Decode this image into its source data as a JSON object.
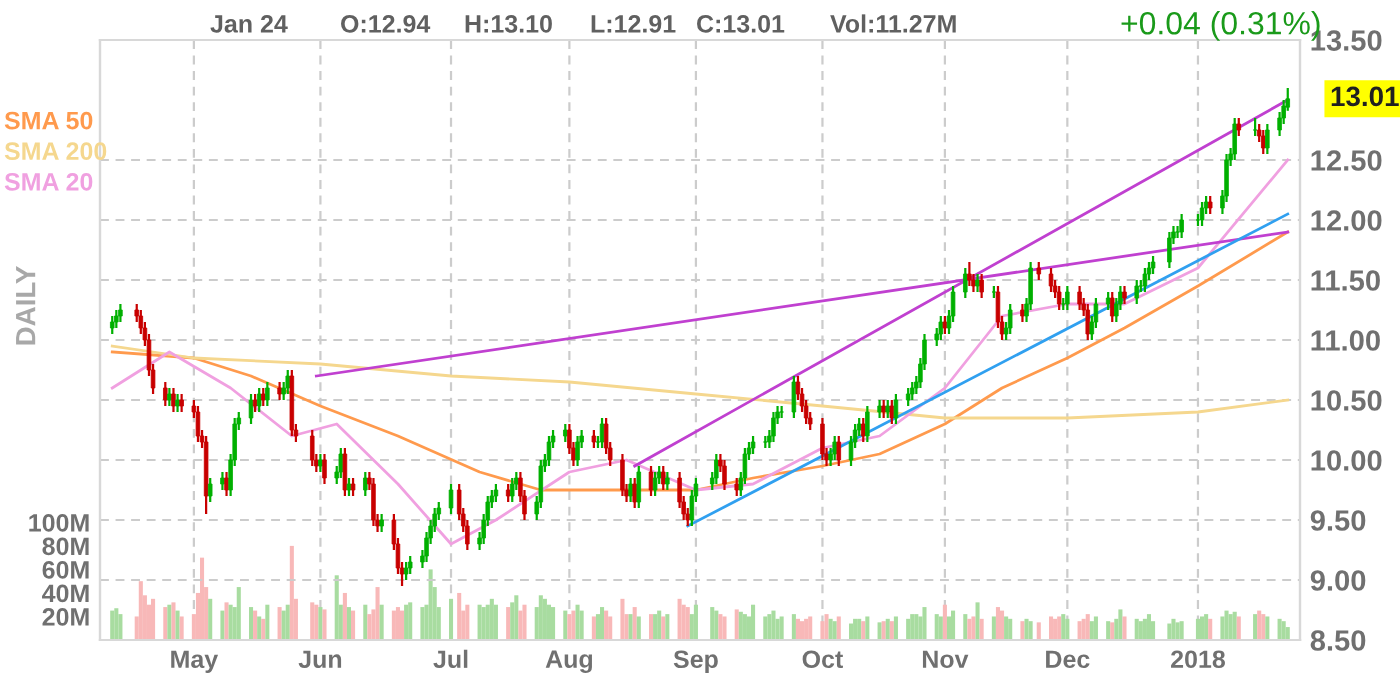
{
  "chart_data": {
    "type": "candlestick",
    "x": [
      "2017-04-11",
      "2017-04-12",
      "2017-04-13",
      "2017-04-17",
      "2017-04-18",
      "2017-04-19",
      "2017-04-20",
      "2017-04-21",
      "2017-04-24",
      "2017-04-25",
      "2017-04-26",
      "2017-04-27",
      "2017-04-28",
      "2017-05-01",
      "2017-05-02",
      "2017-05-03",
      "2017-05-04",
      "2017-05-05",
      "2017-05-08",
      "2017-05-09",
      "2017-05-10",
      "2017-05-11",
      "2017-05-12",
      "2017-05-15",
      "2017-05-16",
      "2017-05-17",
      "2017-05-18",
      "2017-05-19",
      "2017-05-22",
      "2017-05-23",
      "2017-05-24",
      "2017-05-25",
      "2017-05-26",
      "2017-05-30",
      "2017-05-31",
      "2017-06-01",
      "2017-06-02",
      "2017-06-05",
      "2017-06-06",
      "2017-06-07",
      "2017-06-08",
      "2017-06-09",
      "2017-06-12",
      "2017-06-13",
      "2017-06-14",
      "2017-06-15",
      "2017-06-16",
      "2017-06-19",
      "2017-06-20",
      "2017-06-21",
      "2017-06-22",
      "2017-06-23",
      "2017-06-26",
      "2017-06-27",
      "2017-06-28",
      "2017-06-29",
      "2017-06-30",
      "2017-07-03",
      "2017-07-05",
      "2017-07-06",
      "2017-07-07",
      "2017-07-10",
      "2017-07-11",
      "2017-07-12",
      "2017-07-13",
      "2017-07-14",
      "2017-07-17",
      "2017-07-18",
      "2017-07-19",
      "2017-07-20",
      "2017-07-21",
      "2017-07-24",
      "2017-07-25",
      "2017-07-26",
      "2017-07-27",
      "2017-07-28",
      "2017-07-31",
      "2017-08-01",
      "2017-08-02",
      "2017-08-03",
      "2017-08-04",
      "2017-08-07",
      "2017-08-08",
      "2017-08-09",
      "2017-08-10",
      "2017-08-11",
      "2017-08-14",
      "2017-08-15",
      "2017-08-16",
      "2017-08-17",
      "2017-08-18",
      "2017-08-21",
      "2017-08-22",
      "2017-08-23",
      "2017-08-24",
      "2017-08-25",
      "2017-08-28",
      "2017-08-29",
      "2017-08-30",
      "2017-08-31",
      "2017-09-01",
      "2017-09-05",
      "2017-09-06",
      "2017-09-07",
      "2017-09-08",
      "2017-09-11",
      "2017-09-12",
      "2017-09-13",
      "2017-09-14",
      "2017-09-15",
      "2017-09-18",
      "2017-09-19",
      "2017-09-20",
      "2017-09-21",
      "2017-09-22",
      "2017-09-25",
      "2017-09-26",
      "2017-09-27",
      "2017-09-28",
      "2017-09-29",
      "2017-10-02",
      "2017-10-03",
      "2017-10-04",
      "2017-10-05",
      "2017-10-06",
      "2017-10-09",
      "2017-10-10",
      "2017-10-11",
      "2017-10-12",
      "2017-10-13",
      "2017-10-16",
      "2017-10-17",
      "2017-10-18",
      "2017-10-19",
      "2017-10-20",
      "2017-10-23",
      "2017-10-24",
      "2017-10-25",
      "2017-10-26",
      "2017-10-27",
      "2017-10-30",
      "2017-10-31",
      "2017-11-01",
      "2017-11-02",
      "2017-11-03",
      "2017-11-06",
      "2017-11-07",
      "2017-11-08",
      "2017-11-09",
      "2017-11-10",
      "2017-11-13",
      "2017-11-14",
      "2017-11-15",
      "2017-11-16",
      "2017-11-17",
      "2017-11-20",
      "2017-11-21",
      "2017-11-22",
      "2017-11-24",
      "2017-11-27",
      "2017-11-28",
      "2017-11-29",
      "2017-11-30",
      "2017-12-01",
      "2017-12-04",
      "2017-12-05",
      "2017-12-06",
      "2017-12-07",
      "2017-12-08",
      "2017-12-11",
      "2017-12-12",
      "2017-12-13",
      "2017-12-14",
      "2017-12-15",
      "2017-12-18",
      "2017-12-19",
      "2017-12-20",
      "2017-12-21",
      "2017-12-22",
      "2017-12-26",
      "2017-12-27",
      "2017-12-28",
      "2017-12-29",
      "2018-01-02",
      "2018-01-03",
      "2018-01-04",
      "2018-01-05",
      "2018-01-08",
      "2018-01-09",
      "2018-01-10",
      "2018-01-11",
      "2018-01-12",
      "2018-01-16",
      "2018-01-17",
      "2018-01-18",
      "2018-01-19",
      "2018-01-22",
      "2018-01-23",
      "2018-01-24"
    ],
    "ohlc": [
      [
        11.1,
        11.2,
        11.05,
        11.15
      ],
      [
        11.15,
        11.25,
        11.1,
        11.2
      ],
      [
        11.2,
        11.3,
        11.15,
        11.25
      ],
      [
        11.25,
        11.3,
        11.15,
        11.2
      ],
      [
        11.2,
        11.25,
        11.05,
        11.1
      ],
      [
        11.1,
        11.15,
        10.95,
        11.0
      ],
      [
        11.0,
        11.05,
        10.7,
        10.75
      ],
      [
        10.75,
        10.8,
        10.55,
        10.6
      ],
      [
        10.6,
        10.65,
        10.45,
        10.5
      ],
      [
        10.5,
        10.6,
        10.45,
        10.55
      ],
      [
        10.55,
        10.6,
        10.4,
        10.45
      ],
      [
        10.45,
        10.55,
        10.4,
        10.5
      ],
      [
        10.5,
        10.55,
        10.4,
        10.45
      ],
      [
        10.45,
        10.5,
        10.35,
        10.4
      ],
      [
        10.4,
        10.45,
        10.15,
        10.2
      ],
      [
        10.2,
        10.25,
        10.1,
        10.15
      ],
      [
        10.15,
        10.2,
        9.55,
        9.7
      ],
      [
        9.7,
        9.85,
        9.65,
        9.8
      ],
      [
        9.8,
        9.9,
        9.75,
        9.85
      ],
      [
        9.85,
        9.9,
        9.7,
        9.75
      ],
      [
        9.75,
        10.05,
        9.7,
        10.0
      ],
      [
        10.0,
        10.35,
        9.95,
        10.3
      ],
      [
        10.3,
        10.4,
        10.25,
        10.35
      ],
      [
        10.35,
        10.55,
        10.3,
        10.5
      ],
      [
        10.5,
        10.55,
        10.4,
        10.45
      ],
      [
        10.45,
        10.6,
        10.4,
        10.55
      ],
      [
        10.55,
        10.6,
        10.45,
        10.5
      ],
      [
        10.5,
        10.65,
        10.45,
        10.6
      ],
      [
        10.6,
        10.65,
        10.5,
        10.55
      ],
      [
        10.55,
        10.65,
        10.5,
        10.6
      ],
      [
        10.6,
        10.75,
        10.55,
        10.7
      ],
      [
        10.7,
        10.75,
        10.2,
        10.25
      ],
      [
        10.25,
        10.3,
        10.15,
        10.2
      ],
      [
        10.2,
        10.25,
        9.95,
        10.0
      ],
      [
        10.0,
        10.05,
        9.9,
        9.95
      ],
      [
        9.95,
        10.05,
        9.9,
        10.0
      ],
      [
        10.0,
        10.05,
        9.8,
        9.85
      ],
      [
        9.85,
        9.95,
        9.8,
        9.9
      ],
      [
        9.9,
        10.1,
        9.85,
        10.05
      ],
      [
        10.05,
        10.1,
        9.7,
        9.75
      ],
      [
        9.75,
        9.85,
        9.7,
        9.8
      ],
      [
        9.8,
        9.85,
        9.7,
        9.75
      ],
      [
        9.75,
        9.9,
        9.7,
        9.85
      ],
      [
        9.85,
        9.9,
        9.75,
        9.8
      ],
      [
        9.8,
        9.85,
        9.45,
        9.5
      ],
      [
        9.5,
        9.55,
        9.4,
        9.45
      ],
      [
        9.45,
        9.55,
        9.4,
        9.5
      ],
      [
        9.5,
        9.55,
        9.25,
        9.3
      ],
      [
        9.3,
        9.35,
        9.05,
        9.1
      ],
      [
        9.1,
        9.15,
        8.95,
        9.05
      ],
      [
        9.05,
        9.15,
        9.0,
        9.1
      ],
      [
        9.1,
        9.2,
        9.05,
        9.15
      ],
      [
        9.15,
        9.25,
        9.1,
        9.2
      ],
      [
        9.2,
        9.4,
        9.15,
        9.35
      ],
      [
        9.35,
        9.5,
        9.3,
        9.45
      ],
      [
        9.45,
        9.6,
        9.4,
        9.55
      ],
      [
        9.55,
        9.65,
        9.5,
        9.6
      ],
      [
        9.6,
        9.8,
        9.55,
        9.75
      ],
      [
        9.75,
        9.8,
        9.5,
        9.55
      ],
      [
        9.55,
        9.6,
        9.4,
        9.45
      ],
      [
        9.45,
        9.5,
        9.25,
        9.3
      ],
      [
        9.3,
        9.4,
        9.25,
        9.35
      ],
      [
        9.35,
        9.55,
        9.3,
        9.5
      ],
      [
        9.5,
        9.7,
        9.45,
        9.65
      ],
      [
        9.65,
        9.75,
        9.6,
        9.7
      ],
      [
        9.7,
        9.8,
        9.65,
        9.75
      ],
      [
        9.75,
        9.8,
        9.65,
        9.7
      ],
      [
        9.7,
        9.85,
        9.65,
        9.8
      ],
      [
        9.8,
        9.9,
        9.75,
        9.85
      ],
      [
        9.85,
        9.9,
        9.65,
        9.7
      ],
      [
        9.7,
        9.75,
        9.5,
        9.55
      ],
      [
        9.55,
        9.7,
        9.5,
        9.65
      ],
      [
        9.65,
        10.0,
        9.6,
        9.95
      ],
      [
        9.95,
        10.05,
        9.9,
        10.0
      ],
      [
        10.0,
        10.2,
        9.95,
        10.15
      ],
      [
        10.15,
        10.25,
        10.1,
        10.2
      ],
      [
        10.2,
        10.3,
        10.15,
        10.25
      ],
      [
        10.25,
        10.3,
        10.05,
        10.1
      ],
      [
        10.1,
        10.15,
        9.95,
        10.0
      ],
      [
        10.0,
        10.2,
        9.95,
        10.15
      ],
      [
        10.15,
        10.25,
        10.1,
        10.2
      ],
      [
        10.2,
        10.25,
        10.1,
        10.15
      ],
      [
        10.15,
        10.2,
        10.1,
        10.15
      ],
      [
        10.15,
        10.35,
        10.1,
        10.3
      ],
      [
        10.3,
        10.35,
        10.05,
        10.1
      ],
      [
        10.1,
        10.15,
        9.95,
        10.0
      ],
      [
        10.0,
        10.05,
        9.7,
        9.75
      ],
      [
        9.75,
        9.8,
        9.65,
        9.7
      ],
      [
        9.7,
        9.85,
        9.65,
        9.8
      ],
      [
        9.8,
        9.85,
        9.6,
        9.65
      ],
      [
        9.65,
        9.95,
        9.6,
        9.9
      ],
      [
        9.9,
        9.95,
        9.7,
        9.75
      ],
      [
        9.75,
        9.9,
        9.7,
        9.85
      ],
      [
        9.85,
        9.95,
        9.8,
        9.9
      ],
      [
        9.9,
        9.95,
        9.75,
        9.8
      ],
      [
        9.8,
        9.9,
        9.75,
        9.85
      ],
      [
        9.85,
        9.9,
        9.6,
        9.65
      ],
      [
        9.65,
        9.7,
        9.5,
        9.55
      ],
      [
        9.55,
        9.6,
        9.45,
        9.5
      ],
      [
        9.5,
        9.75,
        9.45,
        9.7
      ],
      [
        9.7,
        9.85,
        9.65,
        9.8
      ],
      [
        9.8,
        9.9,
        9.75,
        9.85
      ],
      [
        9.85,
        10.05,
        9.8,
        10.0
      ],
      [
        10.0,
        10.05,
        9.9,
        9.95
      ],
      [
        9.95,
        10.0,
        9.75,
        9.8
      ],
      [
        9.8,
        9.85,
        9.7,
        9.75
      ],
      [
        9.75,
        9.9,
        9.7,
        9.85
      ],
      [
        9.85,
        10.1,
        9.8,
        10.05
      ],
      [
        10.05,
        10.15,
        10.0,
        10.1
      ],
      [
        10.1,
        10.2,
        10.05,
        10.15
      ],
      [
        10.15,
        10.2,
        10.1,
        10.15
      ],
      [
        10.15,
        10.25,
        10.1,
        10.2
      ],
      [
        10.2,
        10.4,
        10.15,
        10.35
      ],
      [
        10.35,
        10.45,
        10.3,
        10.4
      ],
      [
        10.4,
        10.45,
        10.35,
        10.4
      ],
      [
        10.4,
        10.7,
        10.35,
        10.65
      ],
      [
        10.65,
        10.7,
        10.5,
        10.55
      ],
      [
        10.55,
        10.6,
        10.4,
        10.45
      ],
      [
        10.45,
        10.5,
        10.3,
        10.35
      ],
      [
        10.35,
        10.4,
        10.25,
        10.3
      ],
      [
        10.3,
        10.35,
        10.0,
        10.05
      ],
      [
        10.05,
        10.1,
        9.95,
        10.0
      ],
      [
        10.0,
        10.1,
        9.95,
        10.05
      ],
      [
        10.05,
        10.2,
        10.0,
        10.15
      ],
      [
        10.15,
        10.2,
        9.95,
        10.0
      ],
      [
        10.0,
        10.2,
        9.95,
        10.15
      ],
      [
        10.15,
        10.3,
        10.1,
        10.25
      ],
      [
        10.25,
        10.35,
        10.2,
        10.3
      ],
      [
        10.3,
        10.35,
        10.15,
        10.2
      ],
      [
        10.2,
        10.45,
        10.15,
        10.4
      ],
      [
        10.4,
        10.5,
        10.35,
        10.45
      ],
      [
        10.45,
        10.5,
        10.35,
        10.4
      ],
      [
        10.4,
        10.5,
        10.35,
        10.45
      ],
      [
        10.45,
        10.5,
        10.3,
        10.35
      ],
      [
        10.35,
        10.55,
        10.3,
        10.5
      ],
      [
        10.5,
        10.6,
        10.45,
        10.55
      ],
      [
        10.55,
        10.65,
        10.5,
        10.6
      ],
      [
        10.6,
        10.7,
        10.55,
        10.65
      ],
      [
        10.65,
        10.85,
        10.6,
        10.8
      ],
      [
        10.8,
        11.05,
        10.75,
        11.0
      ],
      [
        11.0,
        11.1,
        10.95,
        11.05
      ],
      [
        11.05,
        11.2,
        11.0,
        11.15
      ],
      [
        11.15,
        11.2,
        11.05,
        11.1
      ],
      [
        11.1,
        11.25,
        11.05,
        11.2
      ],
      [
        11.2,
        11.45,
        11.15,
        11.4
      ],
      [
        11.4,
        11.6,
        11.35,
        11.55
      ],
      [
        11.55,
        11.65,
        11.45,
        11.5
      ],
      [
        11.5,
        11.55,
        11.4,
        11.45
      ],
      [
        11.45,
        11.55,
        11.4,
        11.5
      ],
      [
        11.5,
        11.55,
        11.35,
        11.4
      ],
      [
        11.4,
        11.45,
        11.35,
        11.4
      ],
      [
        11.4,
        11.45,
        11.1,
        11.15
      ],
      [
        11.15,
        11.2,
        11.0,
        11.05
      ],
      [
        11.05,
        11.15,
        11.0,
        11.1
      ],
      [
        11.1,
        11.3,
        11.05,
        11.25
      ],
      [
        11.25,
        11.3,
        11.15,
        11.2
      ],
      [
        11.2,
        11.35,
        11.15,
        11.3
      ],
      [
        11.3,
        11.65,
        11.25,
        11.6
      ],
      [
        11.6,
        11.65,
        11.5,
        11.55
      ],
      [
        11.55,
        11.6,
        11.4,
        11.45
      ],
      [
        11.45,
        11.5,
        11.35,
        11.4
      ],
      [
        11.4,
        11.45,
        11.25,
        11.3
      ],
      [
        11.3,
        11.35,
        11.25,
        11.3
      ],
      [
        11.3,
        11.45,
        11.25,
        11.4
      ],
      [
        11.4,
        11.45,
        11.25,
        11.3
      ],
      [
        11.3,
        11.35,
        11.2,
        11.25
      ],
      [
        11.25,
        11.3,
        11.0,
        11.05
      ],
      [
        11.05,
        11.2,
        11.0,
        11.15
      ],
      [
        11.15,
        11.35,
        11.1,
        11.3
      ],
      [
        11.3,
        11.4,
        11.25,
        11.35
      ],
      [
        11.35,
        11.4,
        11.15,
        11.2
      ],
      [
        11.2,
        11.35,
        11.15,
        11.3
      ],
      [
        11.3,
        11.45,
        11.25,
        11.4
      ],
      [
        11.4,
        11.45,
        11.3,
        11.35
      ],
      [
        11.35,
        11.5,
        11.3,
        11.45
      ],
      [
        11.45,
        11.5,
        11.4,
        11.45
      ],
      [
        11.45,
        11.6,
        11.4,
        11.55
      ],
      [
        11.55,
        11.65,
        11.5,
        11.6
      ],
      [
        11.6,
        11.7,
        11.55,
        11.65
      ],
      [
        11.65,
        11.9,
        11.6,
        11.85
      ],
      [
        11.85,
        11.95,
        11.8,
        11.9
      ],
      [
        11.9,
        11.95,
        11.85,
        11.9
      ],
      [
        11.9,
        12.05,
        11.85,
        12.0
      ],
      [
        12.0,
        12.05,
        11.95,
        12.0
      ],
      [
        12.0,
        12.15,
        11.95,
        12.1
      ],
      [
        12.1,
        12.2,
        12.05,
        12.15
      ],
      [
        12.15,
        12.2,
        12.05,
        12.1
      ],
      [
        12.1,
        12.25,
        12.05,
        12.2
      ],
      [
        12.2,
        12.55,
        12.15,
        12.5
      ],
      [
        12.5,
        12.6,
        12.45,
        12.55
      ],
      [
        12.55,
        12.85,
        12.5,
        12.8
      ],
      [
        12.8,
        12.85,
        12.7,
        12.75
      ],
      [
        12.75,
        12.85,
        12.7,
        12.75
      ],
      [
        12.75,
        12.8,
        12.65,
        12.7
      ],
      [
        12.7,
        12.75,
        12.55,
        12.6
      ],
      [
        12.6,
        12.8,
        12.55,
        12.75
      ],
      [
        12.75,
        12.9,
        12.7,
        12.85
      ],
      [
        12.85,
        13.0,
        12.8,
        12.95
      ],
      [
        12.94,
        13.1,
        12.91,
        13.01
      ]
    ],
    "colors": [
      "#00b000",
      "#00b000",
      "#00b000",
      "#c80000",
      "#c80000",
      "#c80000",
      "#c80000",
      "#c80000",
      "#c80000",
      "#00b000",
      "#c80000",
      "#00b000",
      "#c80000",
      "#c80000",
      "#c80000",
      "#c80000",
      "#c80000",
      "#00b000",
      "#00b000",
      "#c80000",
      "#00b000",
      "#00b000",
      "#00b000",
      "#00b000",
      "#c80000",
      "#00b000",
      "#c80000",
      "#00b000",
      "#c80000",
      "#00b000",
      "#00b000",
      "#c80000",
      "#c80000",
      "#c80000",
      "#c80000",
      "#00b000",
      "#c80000",
      "#00b000",
      "#00b000",
      "#c80000",
      "#00b000",
      "#c80000",
      "#00b000",
      "#c80000",
      "#c80000",
      "#c80000",
      "#00b000",
      "#c80000",
      "#c80000",
      "#c80000",
      "#00b000",
      "#00b000",
      "#00b000",
      "#00b000",
      "#00b000",
      "#00b000",
      "#00b000",
      "#00b000",
      "#c80000",
      "#c80000",
      "#c80000",
      "#00b000",
      "#00b000",
      "#00b000",
      "#00b000",
      "#00b000",
      "#c80000",
      "#00b000",
      "#00b000",
      "#c80000",
      "#c80000",
      "#00b000",
      "#00b000",
      "#00b000",
      "#00b000",
      "#00b000",
      "#00b000",
      "#c80000",
      "#c80000",
      "#00b000",
      "#00b000",
      "#c80000",
      "#00b000",
      "#00b000",
      "#c80000",
      "#c80000",
      "#c80000",
      "#c80000",
      "#00b000",
      "#c80000",
      "#00b000",
      "#c80000",
      "#00b000",
      "#00b000",
      "#c80000",
      "#00b000",
      "#c80000",
      "#c80000",
      "#c80000",
      "#00b000",
      "#00b000",
      "#00b000",
      "#00b000",
      "#c80000",
      "#c80000",
      "#c80000",
      "#00b000",
      "#00b000",
      "#00b000",
      "#00b000",
      "#00b000",
      "#00b000",
      "#00b000",
      "#00b000",
      "#00b000",
      "#00b000",
      "#c80000",
      "#c80000",
      "#c80000",
      "#c80000",
      "#c80000",
      "#c80000",
      "#00b000",
      "#00b000",
      "#c80000",
      "#00b000",
      "#00b000",
      "#00b000",
      "#c80000",
      "#00b000",
      "#00b000",
      "#c80000",
      "#00b000",
      "#c80000",
      "#00b000",
      "#00b000",
      "#00b000",
      "#00b000",
      "#00b000",
      "#00b000",
      "#00b000",
      "#00b000",
      "#c80000",
      "#00b000",
      "#00b000",
      "#00b000",
      "#c80000",
      "#c80000",
      "#00b000",
      "#c80000",
      "#00b000",
      "#c80000",
      "#c80000",
      "#00b000",
      "#00b000",
      "#c80000",
      "#00b000",
      "#00b000",
      "#c80000",
      "#c80000",
      "#c80000",
      "#c80000",
      "#00b000",
      "#00b000",
      "#c80000",
      "#c80000",
      "#c80000",
      "#00b000",
      "#00b000",
      "#00b000",
      "#c80000",
      "#00b000",
      "#00b000",
      "#c80000",
      "#00b000",
      "#00b000",
      "#00b000",
      "#00b000",
      "#00b000",
      "#00b000",
      "#00b000",
      "#00b000",
      "#00b000",
      "#00b000",
      "#00b000",
      "#00b000",
      "#c80000",
      "#00b000",
      "#00b000",
      "#00b000",
      "#00b000",
      "#c80000",
      "#00b000",
      "#c80000",
      "#c80000",
      "#00b000",
      "#00b000",
      "#00b000",
      "#00b000"
    ],
    "series": [
      {
        "type": "bar",
        "axis": "y2",
        "colors": [
          "#a8dca0",
          "#a8dca0",
          "#a8dca0",
          "#f8b8b8",
          "#f8b8b8",
          "#f8b8b8",
          "#f8b8b8",
          "#f8b8b8",
          "#f8b8b8",
          "#a8dca0",
          "#f8b8b8",
          "#a8dca0",
          "#f8b8b8",
          "#f8b8b8",
          "#f8b8b8",
          "#f8b8b8",
          "#f8b8b8",
          "#a8dca0",
          "#a8dca0",
          "#f8b8b8",
          "#a8dca0",
          "#a8dca0",
          "#a8dca0",
          "#a8dca0",
          "#f8b8b8",
          "#a8dca0",
          "#f8b8b8",
          "#a8dca0",
          "#f8b8b8",
          "#a8dca0",
          "#a8dca0",
          "#f8b8b8",
          "#f8b8b8",
          "#f8b8b8",
          "#f8b8b8",
          "#a8dca0",
          "#f8b8b8",
          "#a8dca0",
          "#a8dca0",
          "#f8b8b8",
          "#a8dca0",
          "#f8b8b8",
          "#a8dca0",
          "#f8b8b8",
          "#f8b8b8",
          "#f8b8b8",
          "#a8dca0",
          "#f8b8b8",
          "#f8b8b8",
          "#f8b8b8",
          "#a8dca0",
          "#a8dca0",
          "#a8dca0",
          "#a8dca0",
          "#a8dca0",
          "#a8dca0",
          "#a8dca0",
          "#a8dca0",
          "#f8b8b8",
          "#f8b8b8",
          "#f8b8b8",
          "#a8dca0",
          "#a8dca0",
          "#a8dca0",
          "#a8dca0",
          "#a8dca0",
          "#f8b8b8",
          "#a8dca0",
          "#a8dca0",
          "#f8b8b8",
          "#f8b8b8",
          "#a8dca0",
          "#a8dca0",
          "#a8dca0",
          "#a8dca0",
          "#a8dca0",
          "#a8dca0",
          "#f8b8b8",
          "#f8b8b8",
          "#a8dca0",
          "#a8dca0",
          "#f8b8b8",
          "#a8dca0",
          "#a8dca0",
          "#f8b8b8",
          "#f8b8b8",
          "#f8b8b8",
          "#f8b8b8",
          "#a8dca0",
          "#f8b8b8",
          "#a8dca0",
          "#f8b8b8",
          "#a8dca0",
          "#a8dca0",
          "#f8b8b8",
          "#a8dca0",
          "#f8b8b8",
          "#f8b8b8",
          "#f8b8b8",
          "#a8dca0",
          "#a8dca0",
          "#a8dca0",
          "#a8dca0",
          "#f8b8b8",
          "#f8b8b8",
          "#f8b8b8",
          "#a8dca0",
          "#a8dca0",
          "#a8dca0",
          "#a8dca0",
          "#a8dca0",
          "#a8dca0",
          "#a8dca0",
          "#a8dca0",
          "#a8dca0",
          "#a8dca0",
          "#f8b8b8",
          "#f8b8b8",
          "#f8b8b8",
          "#f8b8b8",
          "#f8b8b8",
          "#f8b8b8",
          "#a8dca0",
          "#a8dca0",
          "#f8b8b8",
          "#a8dca0",
          "#a8dca0",
          "#a8dca0",
          "#f8b8b8",
          "#a8dca0",
          "#a8dca0",
          "#f8b8b8",
          "#a8dca0",
          "#f8b8b8",
          "#a8dca0",
          "#a8dca0",
          "#a8dca0",
          "#a8dca0",
          "#a8dca0",
          "#a8dca0",
          "#a8dca0",
          "#a8dca0",
          "#f8b8b8",
          "#a8dca0",
          "#a8dca0",
          "#a8dca0",
          "#f8b8b8",
          "#f8b8b8",
          "#a8dca0",
          "#f8b8b8",
          "#a8dca0",
          "#f8b8b8",
          "#f8b8b8",
          "#a8dca0",
          "#a8dca0",
          "#f8b8b8",
          "#a8dca0",
          "#a8dca0",
          "#f8b8b8",
          "#f8b8b8",
          "#f8b8b8",
          "#f8b8b8",
          "#a8dca0",
          "#a8dca0",
          "#f8b8b8",
          "#f8b8b8",
          "#f8b8b8",
          "#a8dca0",
          "#a8dca0",
          "#a8dca0",
          "#f8b8b8",
          "#a8dca0",
          "#a8dca0",
          "#f8b8b8",
          "#a8dca0",
          "#a8dca0",
          "#a8dca0",
          "#a8dca0",
          "#a8dca0",
          "#a8dca0",
          "#a8dca0",
          "#a8dca0",
          "#a8dca0",
          "#a8dca0",
          "#a8dca0",
          "#a8dca0",
          "#f8b8b8",
          "#a8dca0",
          "#a8dca0",
          "#a8dca0",
          "#a8dca0",
          "#f8b8b8",
          "#a8dca0",
          "#f8b8b8",
          "#f8b8b8",
          "#a8dca0",
          "#a8dca0",
          "#a8dca0",
          "#a8dca0"
        ],
        "values": [
          25,
          27,
          22,
          20,
          50,
          38,
          30,
          35,
          28,
          30,
          32,
          25,
          20,
          22,
          40,
          70,
          45,
          35,
          25,
          32,
          30,
          28,
          45,
          28,
          25,
          20,
          18,
          30,
          28,
          25,
          30,
          80,
          35,
          32,
          30,
          28,
          26,
          55,
          30,
          40,
          28,
          25,
          30,
          22,
          26,
          45,
          30,
          25,
          28,
          25,
          30,
          32,
          28,
          30,
          60,
          45,
          28,
          35,
          40,
          25,
          30,
          30,
          28,
          30,
          35,
          30,
          28,
          32,
          38,
          25,
          30,
          28,
          38,
          35,
          30,
          28,
          25,
          22,
          25,
          30,
          25,
          20,
          22,
          28,
          25,
          20,
          35,
          22,
          22,
          28,
          20,
          22,
          22,
          25,
          20,
          22,
          35,
          30,
          28,
          22,
          30,
          28,
          25,
          22,
          20,
          26,
          24,
          22,
          20,
          30,
          20,
          22,
          25,
          18,
          20,
          22,
          18,
          16,
          18,
          20,
          16,
          22,
          18,
          16,
          20,
          14,
          18,
          18,
          16,
          20,
          15,
          16,
          18,
          16,
          20,
          18,
          22,
          22,
          20,
          28,
          22,
          20,
          30,
          20,
          25,
          22,
          18,
          20,
          32,
          18,
          20,
          28,
          25,
          20,
          18,
          16,
          18,
          16,
          15,
          20,
          18,
          20,
          22,
          18,
          16,
          18,
          22,
          16,
          20,
          16,
          15,
          18,
          26,
          20,
          18,
          16,
          18,
          22,
          16,
          14,
          18,
          15,
          16,
          18,
          20,
          22,
          18,
          20,
          25,
          22,
          24,
          20,
          22,
          25,
          22,
          20,
          18,
          16,
          11
        ]
      },
      {
        "type": "line",
        "name": "SMA 50",
        "color": "#ff9a4d",
        "x": [
          "2017-04-11",
          "2017-05-01",
          "2017-05-15",
          "2017-06-01",
          "2017-06-20",
          "2017-07-10",
          "2017-07-25",
          "2017-08-15",
          "2017-09-01",
          "2017-09-15",
          "2017-10-02",
          "2017-10-16",
          "2017-11-01",
          "2017-11-15",
          "2017-12-01",
          "2017-12-15",
          "2018-01-02",
          "2018-01-24"
        ],
        "values": [
          10.9,
          10.85,
          10.7,
          10.45,
          10.2,
          9.9,
          9.75,
          9.75,
          9.75,
          9.85,
          9.95,
          10.05,
          10.3,
          10.6,
          10.85,
          11.1,
          11.45,
          11.9
        ]
      },
      {
        "type": "line",
        "name": "SMA 200",
        "color": "#f5d78e",
        "x": [
          "2017-04-11",
          "2017-05-01",
          "2017-06-01",
          "2017-07-03",
          "2017-08-01",
          "2017-09-01",
          "2017-10-02",
          "2017-11-01",
          "2017-12-01",
          "2018-01-02",
          "2018-01-24"
        ],
        "values": [
          10.95,
          10.85,
          10.8,
          10.7,
          10.65,
          10.55,
          10.45,
          10.35,
          10.35,
          10.4,
          10.5
        ]
      },
      {
        "type": "line",
        "name": "SMA 20",
        "color": "#f0a0e0",
        "x": [
          "2017-04-11",
          "2017-04-25",
          "2017-05-10",
          "2017-05-25",
          "2017-06-05",
          "2017-06-20",
          "2017-07-03",
          "2017-07-14",
          "2017-08-01",
          "2017-08-15",
          "2017-09-01",
          "2017-09-15",
          "2017-10-02",
          "2017-10-16",
          "2017-11-01",
          "2017-11-15",
          "2017-12-01",
          "2017-12-15",
          "2018-01-02",
          "2018-01-24"
        ],
        "values": [
          10.6,
          10.9,
          10.6,
          10.2,
          10.3,
          9.8,
          9.3,
          9.5,
          9.9,
          10.0,
          9.75,
          9.8,
          10.1,
          10.2,
          10.6,
          11.2,
          11.3,
          11.3,
          11.6,
          12.5
        ]
      },
      {
        "type": "line",
        "color": "#c040d0",
        "x": [
          "2017-05-31",
          "2018-01-24"
        ],
        "values": [
          10.7,
          11.9
        ]
      },
      {
        "type": "line",
        "color": "#c040d0",
        "x": [
          "2017-08-17",
          "2018-01-24"
        ],
        "values": [
          9.95,
          13.0
        ]
      },
      {
        "type": "line",
        "color": "#30a0f0",
        "x": [
          "2017-08-30",
          "2018-01-24"
        ],
        "values": [
          9.45,
          12.05
        ]
      }
    ],
    "xlim": [
      "2017-04-08",
      "2018-01-27"
    ],
    "xticks": [
      {
        "value": "2017-05-01",
        "label": "May"
      },
      {
        "value": "2017-06-01",
        "label": "Jun"
      },
      {
        "value": "2017-07-03",
        "label": "Jul"
      },
      {
        "value": "2017-08-01",
        "label": "Aug"
      },
      {
        "value": "2017-09-01",
        "label": "Sep"
      },
      {
        "value": "2017-10-02",
        "label": "Oct"
      },
      {
        "value": "2017-11-01",
        "label": "Nov"
      },
      {
        "value": "2017-12-01",
        "label": "Dec"
      },
      {
        "value": "2018-01-02",
        "label": "2018"
      }
    ],
    "ylim": [
      8.5,
      13.5
    ],
    "yticks": [
      {
        "value": 8.5,
        "label": "8.50"
      },
      {
        "value": 9,
        "label": "9.00"
      },
      {
        "value": 9.5,
        "label": "9.50"
      },
      {
        "value": 10,
        "label": "10.00"
      },
      {
        "value": 10.5,
        "label": "10.50"
      },
      {
        "value": 11,
        "label": "11.00"
      },
      {
        "value": 11.5,
        "label": "11.50"
      },
      {
        "value": 12,
        "label": "12.00"
      },
      {
        "value": 12.5,
        "label": "12.50"
      },
      {
        "value": 13.5,
        "label": "13.50"
      }
    ],
    "y2lim": [
      0,
      510
    ],
    "y2ticks": [
      {
        "value": 20,
        "label": "20M"
      },
      {
        "value": 40,
        "label": "40M"
      },
      {
        "value": 60,
        "label": "60M"
      },
      {
        "value": 80,
        "label": "80M"
      },
      {
        "value": 100,
        "label": "100M"
      }
    ],
    "grid": true,
    "legend": "top left",
    "annotations": [
      "Jan 24",
      "O:12.94",
      "H:13.10",
      "L:12.91",
      "C:13.01",
      "Vol:11.27M",
      "+0.04 (0.31%)",
      "DAILY",
      {
        "text": "13.01",
        "x": "2018-01-24",
        "y": 13.01
      }
    ]
  }
}
